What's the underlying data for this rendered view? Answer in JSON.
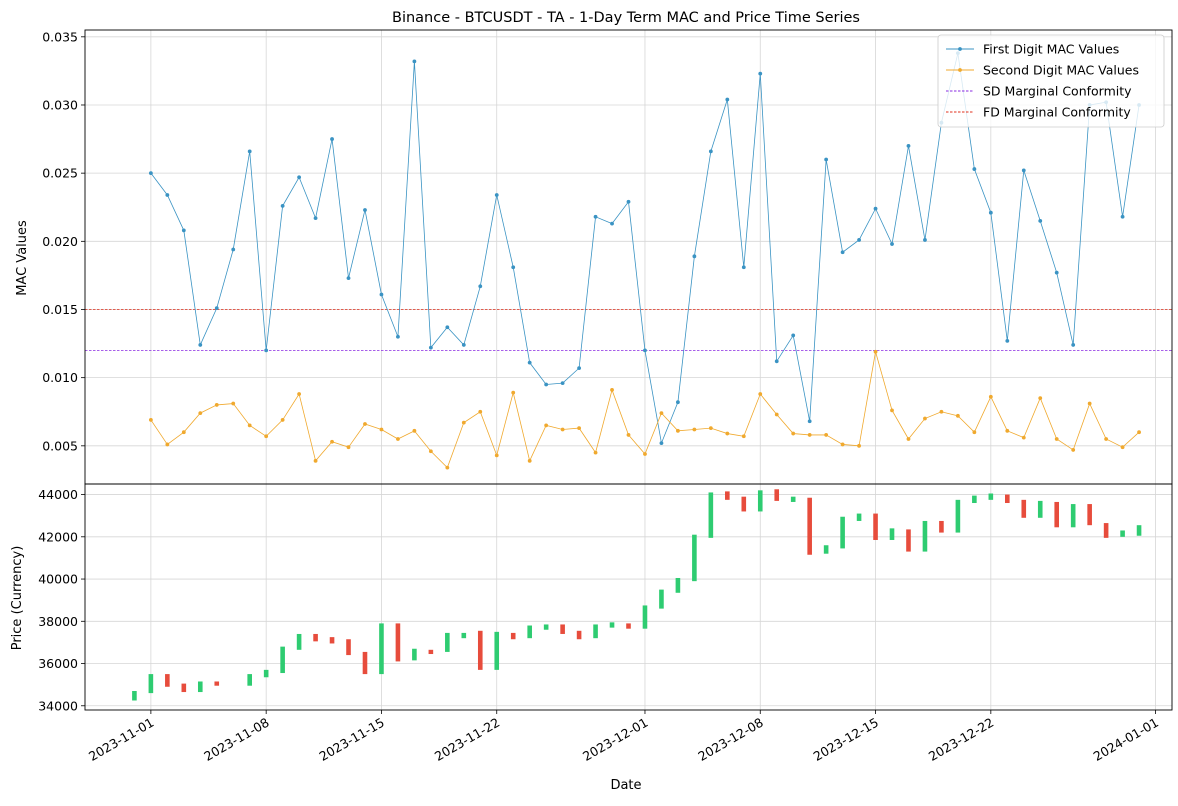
{
  "chart_data": {
    "title": "Binance - BTCUSDT - TA - 1-Day Term MAC and Price Time Series",
    "xlabel": "Date",
    "x_ticks": [
      "2023-11-01",
      "2023-11-08",
      "2023-11-15",
      "2023-11-22",
      "2023-12-01",
      "2023-12-08",
      "2023-12-15",
      "2023-12-22",
      "2024-01-01"
    ],
    "x_range": [
      "2023-10-28",
      "2024-01-02"
    ],
    "grid": true,
    "panels": [
      {
        "type": "line",
        "ylabel": "MAC Values",
        "ylim": [
          0.0022,
          0.0355
        ],
        "y_ticks": [
          "0.005",
          "0.010",
          "0.015",
          "0.020",
          "0.025",
          "0.030",
          "0.035"
        ],
        "legend_position": "top-right",
        "dates": [
          "2023-11-01",
          "2023-11-02",
          "2023-11-03",
          "2023-11-04",
          "2023-11-05",
          "2023-11-06",
          "2023-11-07",
          "2023-11-08",
          "2023-11-09",
          "2023-11-10",
          "2023-11-11",
          "2023-11-12",
          "2023-11-13",
          "2023-11-14",
          "2023-11-15",
          "2023-11-16",
          "2023-11-17",
          "2023-11-18",
          "2023-11-19",
          "2023-11-20",
          "2023-11-21",
          "2023-11-22",
          "2023-11-23",
          "2023-11-24",
          "2023-11-25",
          "2023-11-26",
          "2023-11-27",
          "2023-11-28",
          "2023-11-29",
          "2023-11-30",
          "2023-12-01",
          "2023-12-02",
          "2023-12-03",
          "2023-12-04",
          "2023-12-05",
          "2023-12-06",
          "2023-12-07",
          "2023-12-08",
          "2023-12-09",
          "2023-12-10",
          "2023-12-11",
          "2023-12-12",
          "2023-12-13",
          "2023-12-14",
          "2023-12-15",
          "2023-12-16",
          "2023-12-17",
          "2023-12-18",
          "2023-12-19",
          "2023-12-20",
          "2023-12-21",
          "2023-12-22",
          "2023-12-23",
          "2023-12-24",
          "2023-12-25",
          "2023-12-26",
          "2023-12-27",
          "2023-12-28",
          "2023-12-29",
          "2023-12-30",
          "2023-12-31"
        ],
        "series": [
          {
            "name": "First Digit MAC Values",
            "color": "#3a93c3",
            "values": [
              0.025,
              0.0234,
              0.0208,
              0.0124,
              0.0151,
              0.0194,
              0.0266,
              0.012,
              0.0226,
              0.0247,
              0.0217,
              0.0275,
              0.0173,
              0.0223,
              0.0161,
              0.013,
              0.0332,
              0.0122,
              0.0137,
              0.0124,
              0.0167,
              0.0234,
              0.0181,
              0.0111,
              0.0095,
              0.0096,
              0.0107,
              0.0218,
              0.0213,
              0.0229,
              0.012,
              0.0052,
              0.0082,
              0.0189,
              0.0266,
              0.0304,
              0.0181,
              0.0323,
              0.0112,
              0.0131,
              0.0068,
              0.026,
              0.0192,
              0.0201,
              0.0224,
              0.0198,
              0.027,
              0.0201,
              0.0287,
              0.0338,
              0.0253,
              0.0221,
              0.0127,
              0.0252,
              0.0215,
              0.0177,
              0.0124,
              0.03,
              0.0302,
              0.0218,
              0.03
            ]
          },
          {
            "name": "Second Digit MAC Values",
            "color": "#f0a92e",
            "values": [
              0.0069,
              0.0051,
              0.006,
              0.0074,
              0.008,
              0.0081,
              0.0065,
              0.0057,
              0.0069,
              0.0088,
              0.0039,
              0.0053,
              0.0049,
              0.0066,
              0.0062,
              0.0055,
              0.0061,
              0.0046,
              0.0034,
              0.0067,
              0.0075,
              0.0043,
              0.0089,
              0.0039,
              0.0065,
              0.0062,
              0.0063,
              0.0045,
              0.0091,
              0.0058,
              0.0044,
              0.0074,
              0.0061,
              0.0062,
              0.0063,
              0.0059,
              0.0057,
              0.0088,
              0.0073,
              0.0059,
              0.0058,
              0.0058,
              0.0051,
              0.005,
              0.0119,
              0.0076,
              0.0055,
              0.007,
              0.0075,
              0.0072,
              0.006,
              0.0086,
              0.0061,
              0.0056,
              0.0085,
              0.0055,
              0.0047,
              0.0081,
              0.0055,
              0.0049,
              0.006
            ]
          }
        ],
        "reference_lines": [
          {
            "name": "SD Marginal Conformity",
            "value": 0.012,
            "color": "#8a2be2",
            "style": "dashed"
          },
          {
            "name": "FD Marginal Conformity",
            "value": 0.015,
            "color": "#e0301e",
            "style": "dashed"
          }
        ]
      },
      {
        "type": "candlestick",
        "ylabel": "Price (Currency)",
        "ylim": [
          33800,
          44500
        ],
        "y_ticks": [
          "34000",
          "36000",
          "38000",
          "40000",
          "42000",
          "44000"
        ],
        "up_color": "#2ecc71",
        "down_color": "#e74c3c",
        "candles": [
          {
            "date": "2023-10-31",
            "open": 34250,
            "close": 34700
          },
          {
            "date": "2023-11-01",
            "open": 34600,
            "close": 35500
          },
          {
            "date": "2023-11-02",
            "open": 35500,
            "close": 34900
          },
          {
            "date": "2023-11-03",
            "open": 35050,
            "close": 34650
          },
          {
            "date": "2023-11-04",
            "open": 34650,
            "close": 35150
          },
          {
            "date": "2023-11-05",
            "open": 35150,
            "close": 34950
          },
          {
            "date": "2023-11-07",
            "open": 34950,
            "close": 35500
          },
          {
            "date": "2023-11-08",
            "open": 35350,
            "close": 35700
          },
          {
            "date": "2023-11-09",
            "open": 35550,
            "close": 36800
          },
          {
            "date": "2023-11-10",
            "open": 36650,
            "close": 37400
          },
          {
            "date": "2023-11-11",
            "open": 37400,
            "close": 37050
          },
          {
            "date": "2023-11-12",
            "open": 37250,
            "close": 36950
          },
          {
            "date": "2023-11-13",
            "open": 37150,
            "close": 36400
          },
          {
            "date": "2023-11-14",
            "open": 36550,
            "close": 35500
          },
          {
            "date": "2023-11-15",
            "open": 35500,
            "close": 37900
          },
          {
            "date": "2023-11-16",
            "open": 37900,
            "close": 36100
          },
          {
            "date": "2023-11-17",
            "open": 36150,
            "close": 36700
          },
          {
            "date": "2023-11-18",
            "open": 36650,
            "close": 36450
          },
          {
            "date": "2023-11-19",
            "open": 36550,
            "close": 37450
          },
          {
            "date": "2023-11-20",
            "open": 37200,
            "close": 37450
          },
          {
            "date": "2023-11-21",
            "open": 37550,
            "close": 35700
          },
          {
            "date": "2023-11-22",
            "open": 35700,
            "close": 37500
          },
          {
            "date": "2023-11-23",
            "open": 37450,
            "close": 37150
          },
          {
            "date": "2023-11-24",
            "open": 37200,
            "close": 37800
          },
          {
            "date": "2023-11-25",
            "open": 37600,
            "close": 37850
          },
          {
            "date": "2023-11-26",
            "open": 37850,
            "close": 37400
          },
          {
            "date": "2023-11-27",
            "open": 37550,
            "close": 37150
          },
          {
            "date": "2023-11-28",
            "open": 37200,
            "close": 37850
          },
          {
            "date": "2023-11-29",
            "open": 37700,
            "close": 37950
          },
          {
            "date": "2023-11-30",
            "open": 37900,
            "close": 37650
          },
          {
            "date": "2023-12-01",
            "open": 37650,
            "close": 38750
          },
          {
            "date": "2023-12-02",
            "open": 38600,
            "close": 39500
          },
          {
            "date": "2023-12-03",
            "open": 39350,
            "close": 40050
          },
          {
            "date": "2023-12-04",
            "open": 39900,
            "close": 42100
          },
          {
            "date": "2023-12-05",
            "open": 41950,
            "close": 44100
          },
          {
            "date": "2023-12-06",
            "open": 44150,
            "close": 43750
          },
          {
            "date": "2023-12-07",
            "open": 43900,
            "close": 43200
          },
          {
            "date": "2023-12-08",
            "open": 43200,
            "close": 44200
          },
          {
            "date": "2023-12-09",
            "open": 44250,
            "close": 43700
          },
          {
            "date": "2023-12-10",
            "open": 43650,
            "close": 43900
          },
          {
            "date": "2023-12-11",
            "open": 43850,
            "close": 41150
          },
          {
            "date": "2023-12-12",
            "open": 41200,
            "close": 41600
          },
          {
            "date": "2023-12-13",
            "open": 41450,
            "close": 42950
          },
          {
            "date": "2023-12-14",
            "open": 42750,
            "close": 43100
          },
          {
            "date": "2023-12-15",
            "open": 43100,
            "close": 41850
          },
          {
            "date": "2023-12-16",
            "open": 41850,
            "close": 42400
          },
          {
            "date": "2023-12-17",
            "open": 42350,
            "close": 41300
          },
          {
            "date": "2023-12-18",
            "open": 41300,
            "close": 42750
          },
          {
            "date": "2023-12-19",
            "open": 42750,
            "close": 42200
          },
          {
            "date": "2023-12-20",
            "open": 42200,
            "close": 43750
          },
          {
            "date": "2023-12-21",
            "open": 43600,
            "close": 43950
          },
          {
            "date": "2023-12-22",
            "open": 43750,
            "close": 44050
          },
          {
            "date": "2023-12-23",
            "open": 44000,
            "close": 43600
          },
          {
            "date": "2023-12-24",
            "open": 43750,
            "close": 42900
          },
          {
            "date": "2023-12-25",
            "open": 42900,
            "close": 43700
          },
          {
            "date": "2023-12-26",
            "open": 43650,
            "close": 42450
          },
          {
            "date": "2023-12-27",
            "open": 42450,
            "close": 43550
          },
          {
            "date": "2023-12-28",
            "open": 43550,
            "close": 42550
          },
          {
            "date": "2023-12-29",
            "open": 42650,
            "close": 41950
          },
          {
            "date": "2023-12-30",
            "open": 42000,
            "close": 42300
          },
          {
            "date": "2023-12-31",
            "open": 42050,
            "close": 42550
          }
        ]
      }
    ]
  }
}
